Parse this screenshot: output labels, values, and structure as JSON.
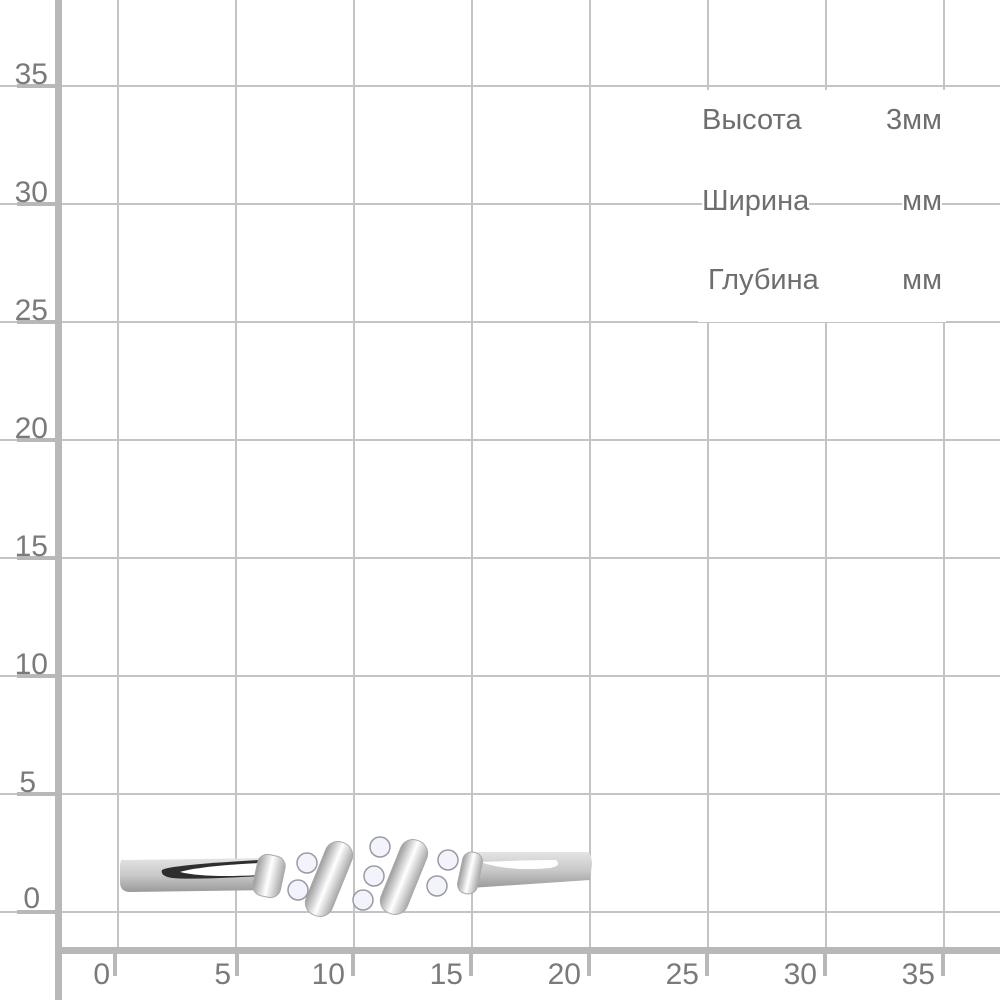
{
  "y_axis": {
    "ticks": [
      "35",
      "30",
      "25",
      "20",
      "15",
      "10",
      "5",
      "0"
    ]
  },
  "x_axis": {
    "ticks": [
      "0",
      "5",
      "10",
      "15",
      "20",
      "25",
      "30",
      "35"
    ]
  },
  "dimensions": [
    {
      "label": "Высота",
      "value": "3мм"
    },
    {
      "label": "Ширина",
      "value": "мм"
    },
    {
      "label": "Глубина",
      "value": "мм"
    }
  ],
  "colors": {
    "grid": "#c4c4c4",
    "axis": "#b8b8b8",
    "text": "#7a7a7a"
  }
}
